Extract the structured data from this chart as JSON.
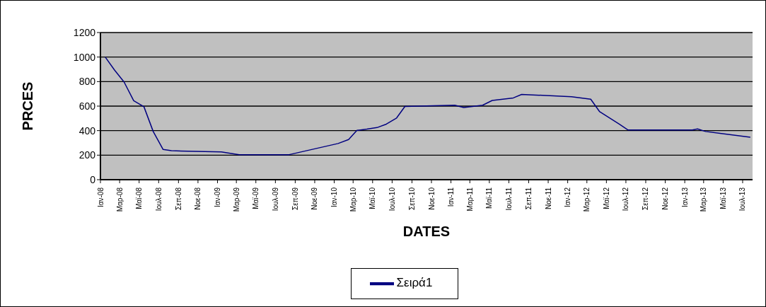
{
  "chart_data": {
    "type": "line",
    "xlabel": "DATES",
    "ylabel": "PRCES",
    "x": [
      "2008-01-16",
      "2008-02-14",
      "2008-03-15",
      "2008-04-14",
      "2008-05-16",
      "2008-06-14",
      "2008-07-15",
      "2008-08-10",
      "2009-01-13",
      "2009-03-10",
      "2009-08-13",
      "2010-01-13",
      "2010-02-15",
      "2010-03-13",
      "2010-04-13",
      "2010-05-15",
      "2010-06-13",
      "2010-07-15",
      "2010-08-10",
      "2011-01-13",
      "2011-02-10",
      "2011-04-10",
      "2011-05-10",
      "2011-07-15",
      "2011-08-10",
      "2012-01-13",
      "2012-03-13",
      "2012-04-10",
      "2012-06-10",
      "2012-07-07",
      "2013-01-25",
      "2013-02-10",
      "2013-03-07",
      "2013-07-25"
    ],
    "series": [
      {
        "name": "Σειρά1",
        "color": "#000080",
        "values": [
          1000,
          894,
          796,
          644,
          595,
          393,
          246,
          236,
          226,
          204,
          204,
          295,
          327,
          402,
          412,
          425,
          453,
          503,
          597,
          607,
          588,
          607,
          646,
          667,
          695,
          677,
          656,
          554,
          453,
          406,
          405,
          414,
          393,
          346
        ]
      }
    ],
    "xlim": [
      "2008-01-01",
      "2013-08-01"
    ],
    "xticks": [
      {
        "value": "2008-01-01",
        "label": "Ιαν-08"
      },
      {
        "value": "2008-03-01",
        "label": "Μαρ-08"
      },
      {
        "value": "2008-05-01",
        "label": "Μαϊ-08"
      },
      {
        "value": "2008-07-01",
        "label": "Ιουλ-08"
      },
      {
        "value": "2008-09-01",
        "label": "Σεπ-08"
      },
      {
        "value": "2008-11-01",
        "label": "Νοε-08"
      },
      {
        "value": "2009-01-01",
        "label": "Ιαν-09"
      },
      {
        "value": "2009-03-01",
        "label": "Μαρ-09"
      },
      {
        "value": "2009-05-01",
        "label": "Μαϊ-09"
      },
      {
        "value": "2009-07-01",
        "label": "Ιουλ-09"
      },
      {
        "value": "2009-09-01",
        "label": "Σεπ-09"
      },
      {
        "value": "2009-11-01",
        "label": "Νοε-09"
      },
      {
        "value": "2010-01-01",
        "label": "Ιαν-10"
      },
      {
        "value": "2010-03-01",
        "label": "Μαρ-10"
      },
      {
        "value": "2010-05-01",
        "label": "Μαϊ-10"
      },
      {
        "value": "2010-07-01",
        "label": "Ιουλ-10"
      },
      {
        "value": "2010-09-01",
        "label": "Σεπ-10"
      },
      {
        "value": "2010-11-01",
        "label": "Νοε-10"
      },
      {
        "value": "2011-01-01",
        "label": "Ιαν-11"
      },
      {
        "value": "2011-03-01",
        "label": "Μαρ-11"
      },
      {
        "value": "2011-05-01",
        "label": "Μαϊ-11"
      },
      {
        "value": "2011-07-01",
        "label": "Ιουλ-11"
      },
      {
        "value": "2011-09-01",
        "label": "Σεπ-11"
      },
      {
        "value": "2011-11-01",
        "label": "Νοε-11"
      },
      {
        "value": "2012-01-01",
        "label": "Ιαν-12"
      },
      {
        "value": "2012-03-01",
        "label": "Μαρ-12"
      },
      {
        "value": "2012-05-01",
        "label": "Μαϊ-12"
      },
      {
        "value": "2012-07-01",
        "label": "Ιουλ-12"
      },
      {
        "value": "2012-09-01",
        "label": "Σεπ-12"
      },
      {
        "value": "2012-11-01",
        "label": "Νοε-12"
      },
      {
        "value": "2013-01-01",
        "label": "Ιαν-13"
      },
      {
        "value": "2013-03-01",
        "label": "Μαρ-13"
      },
      {
        "value": "2013-05-01",
        "label": "Μαϊ-13"
      },
      {
        "value": "2013-07-01",
        "label": "Ιουλ-13"
      }
    ],
    "ylim": [
      0,
      1200
    ],
    "yticks": [
      0,
      200,
      400,
      600,
      800,
      1000,
      1200
    ],
    "grid": "y",
    "legend": "bottom",
    "marker": "none",
    "line_style": "solid"
  }
}
